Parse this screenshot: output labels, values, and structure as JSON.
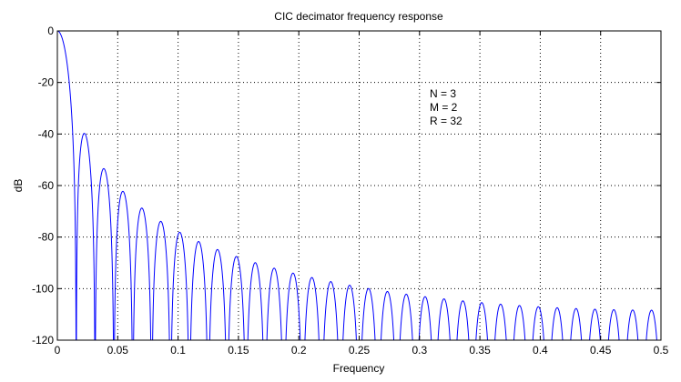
{
  "chart_data": {
    "type": "line",
    "title": "CIC decimator frequency response",
    "xlabel": "Frequency",
    "ylabel": "dB",
    "xlim": [
      0,
      0.5
    ],
    "ylim": [
      -120,
      0
    ],
    "xticks": [
      0,
      0.05,
      0.1,
      0.15,
      0.2,
      0.25,
      0.3,
      0.35,
      0.4,
      0.45,
      0.5
    ],
    "xtick_labels": [
      "0",
      "0.05",
      "0.1",
      "0.15",
      "0.2",
      "0.25",
      "0.3",
      "0.35",
      "0.4",
      "0.45",
      "0.5"
    ],
    "yticks": [
      0,
      -20,
      -40,
      -60,
      -80,
      -100,
      -120
    ],
    "ytick_labels": [
      "0",
      "-20",
      "-40",
      "-60",
      "-80",
      "-100",
      "-120"
    ],
    "grid": true,
    "grid_style": "dotted",
    "line_color": "#0000ff",
    "params": {
      "N": 3,
      "M": 2,
      "R": 32
    },
    "annotation": [
      "N = 3",
      "M = 2",
      "R = 32"
    ]
  }
}
